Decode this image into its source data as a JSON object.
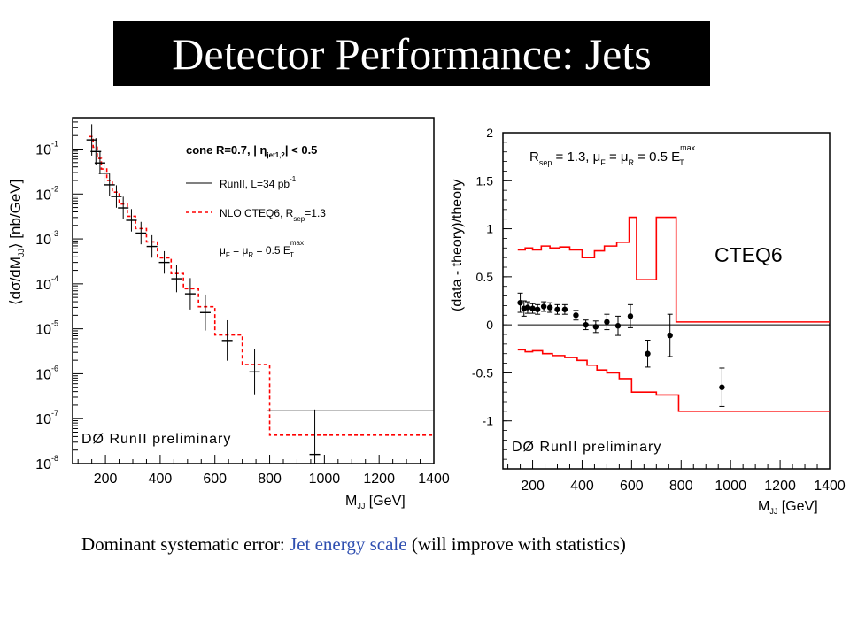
{
  "slide": {
    "title": "Detector Performance: Jets",
    "caption_pre": "Dominant systematic error: ",
    "caption_highlight": "Jet energy scale",
    "caption_post": " (will improve with statistics)",
    "highlight_color": "#2f4fb0"
  },
  "chart_data": [
    {
      "type": "line",
      "ylog": true,
      "xlim": [
        80,
        1400
      ],
      "ylim": [
        1e-08,
        0.5
      ],
      "xticks": [
        200,
        400,
        600,
        800,
        1000,
        1200,
        1400
      ],
      "xlabel_main": "M",
      "xlabel_sub": "JJ",
      "xlabel_unit": "[GeV]",
      "ylabel_pre": "⟨dσ/dM",
      "ylabel_sub": "JJ",
      "ylabel_post": "⟩ [nb/GeV]",
      "ytick_exponents": [
        "-1",
        "-2",
        "-3",
        "-4",
        "-5",
        "-6",
        "-7",
        "-8"
      ],
      "ytick_base": "10",
      "annotations": {
        "cone": "cone R=0.7, | η",
        "cone_sub": "jet1,2",
        "cone_post": "| < 0.5",
        "legend_data": "RunII, L=34 pb",
        "legend_data_sup": "-1",
        "legend_theory": "NLO CTEQ6, R",
        "legend_theory_sub": "sep",
        "legend_theory_post": "=1.3",
        "scale_pre": "μ",
        "scale_sub1": "F",
        "scale_mid": " = μ",
        "scale_sub2": "R",
        "scale_post": " = 0.5 E",
        "scale_sup": "max",
        "scale_sub3": "T",
        "watermark": "DØ RunII preliminary"
      },
      "series": [
        {
          "name": "RunII, L=34 pb-1",
          "style": "data",
          "points": [
            {
              "x": 150,
              "y": 0.16,
              "dy": 0.35
            },
            {
              "x": 165,
              "y": 0.088,
              "dy": 0.3
            },
            {
              "x": 180,
              "y": 0.049,
              "dy": 0.25
            },
            {
              "x": 195,
              "y": 0.029,
              "dy": 0.25
            },
            {
              "x": 215,
              "y": 0.016,
              "dy": 0.25
            },
            {
              "x": 240,
              "y": 0.0088,
              "dy": 0.25
            },
            {
              "x": 265,
              "y": 0.0049,
              "dy": 0.25
            },
            {
              "x": 295,
              "y": 0.0026,
              "dy": 0.25
            },
            {
              "x": 330,
              "y": 0.00135,
              "dy": 0.25
            },
            {
              "x": 370,
              "y": 0.00068,
              "dy": 0.25
            },
            {
              "x": 415,
              "y": 0.0003,
              "dy": 0.25
            },
            {
              "x": 460,
              "y": 0.00013,
              "dy": 0.3
            },
            {
              "x": 510,
              "y": 6e-05,
              "dy": 0.35
            },
            {
              "x": 565,
              "y": 2.3e-05,
              "dy": 0.4
            },
            {
              "x": 645,
              "y": 5.5e-06,
              "dy": 0.45
            },
            {
              "x": 745,
              "y": 1.1e-06,
              "dy": 0.5
            },
            {
              "x": 965,
              "y": 1.6e-08,
              "dy": 1.0
            }
          ],
          "bins": [
            [
              790,
              1400,
              1.5e-07
            ]
          ]
        },
        {
          "name": "NLO CTEQ6, R sep=1.3",
          "style": "dashed-step",
          "color": "#ff0000",
          "bins": [
            [
              140,
              155,
              0.19
            ],
            [
              155,
              170,
              0.11
            ],
            [
              170,
              185,
              0.062
            ],
            [
              185,
              205,
              0.036
            ],
            [
              205,
              225,
              0.02
            ],
            [
              225,
              250,
              0.011
            ],
            [
              250,
              280,
              0.006
            ],
            [
              280,
              310,
              0.0032
            ],
            [
              310,
              350,
              0.0017
            ],
            [
              350,
              390,
              0.00086
            ],
            [
              390,
              440,
              0.00038
            ],
            [
              440,
              485,
              0.00017
            ],
            [
              485,
              540,
              7.8e-05
            ],
            [
              540,
              600,
              3.1e-05
            ],
            [
              600,
              700,
              7.3e-06
            ],
            [
              700,
              800,
              1.6e-06
            ],
            [
              800,
              1400,
              4.3e-08
            ]
          ]
        }
      ]
    },
    {
      "type": "line",
      "xlim": [
        80,
        1400
      ],
      "ylim": [
        -1.5,
        2
      ],
      "xticks": [
        200,
        400,
        600,
        800,
        1000,
        1200,
        1400
      ],
      "yticks": [
        -1,
        -0.5,
        0,
        0.5,
        1,
        1.5,
        2
      ],
      "ytick_labels": [
        "-1",
        "-0.5",
        "0",
        "0.5",
        "1",
        "1.5",
        "2"
      ],
      "xlabel_main": "M",
      "xlabel_sub": "JJ",
      "xlabel_unit": "[GeV]",
      "ylabel": "(data - theory)/theory",
      "annotations": {
        "rsep_pre": "R",
        "rsep_sub": "sep",
        "rsep_mid": " = 1.3, μ",
        "rsep_sub2": "F",
        "rsep_mid2": " = μ",
        "rsep_sub3": "R",
        "rsep_post": " = 0.5 E",
        "rsep_sup": "max",
        "rsep_sub4": "T",
        "cteq": "CTEQ6",
        "watermark": "DØ RunII preliminary"
      },
      "series": [
        {
          "name": "data",
          "style": "points",
          "points": [
            {
              "x": 150,
              "y": 0.23,
              "dy": 0.1
            },
            {
              "x": 165,
              "y": 0.17,
              "dy": 0.08
            },
            {
              "x": 180,
              "y": 0.18,
              "dy": 0.06
            },
            {
              "x": 200,
              "y": 0.17,
              "dy": 0.05
            },
            {
              "x": 220,
              "y": 0.16,
              "dy": 0.05
            },
            {
              "x": 245,
              "y": 0.19,
              "dy": 0.05
            },
            {
              "x": 270,
              "y": 0.18,
              "dy": 0.05
            },
            {
              "x": 300,
              "y": 0.16,
              "dy": 0.05
            },
            {
              "x": 330,
              "y": 0.16,
              "dy": 0.05
            },
            {
              "x": 375,
              "y": 0.1,
              "dy": 0.05
            },
            {
              "x": 415,
              "y": 0.0,
              "dy": 0.05
            },
            {
              "x": 455,
              "y": -0.02,
              "dy": 0.06
            },
            {
              "x": 500,
              "y": 0.03,
              "dy": 0.08
            },
            {
              "x": 545,
              "y": -0.01,
              "dy": 0.1
            },
            {
              "x": 595,
              "y": 0.09,
              "dy": 0.12
            },
            {
              "x": 665,
              "y": -0.3,
              "dy": 0.14
            },
            {
              "x": 755,
              "y": -0.11,
              "dy": 0.22
            },
            {
              "x": 965,
              "y": -0.65,
              "dy": 0.2
            }
          ]
        },
        {
          "name": "upper band",
          "style": "step",
          "color": "#ff0000",
          "bins": [
            [
              140,
              170,
              0.78
            ],
            [
              170,
              200,
              0.8
            ],
            [
              200,
              235,
              0.78
            ],
            [
              235,
              270,
              0.82
            ],
            [
              270,
              310,
              0.8
            ],
            [
              310,
              350,
              0.81
            ],
            [
              350,
              400,
              0.78
            ],
            [
              400,
              450,
              0.7
            ],
            [
              450,
              490,
              0.77
            ],
            [
              490,
              540,
              0.82
            ],
            [
              540,
              590,
              0.86
            ],
            [
              590,
              620,
              1.12
            ],
            [
              620,
              700,
              0.47
            ],
            [
              700,
              780,
              1.12
            ],
            [
              780,
              1400,
              0.03
            ]
          ]
        },
        {
          "name": "lower band",
          "style": "step",
          "color": "#ff0000",
          "bins": [
            [
              140,
              170,
              -0.26
            ],
            [
              170,
              200,
              -0.28
            ],
            [
              200,
              240,
              -0.27
            ],
            [
              240,
              280,
              -0.3
            ],
            [
              280,
              330,
              -0.32
            ],
            [
              330,
              380,
              -0.34
            ],
            [
              380,
              420,
              -0.37
            ],
            [
              420,
              460,
              -0.42
            ],
            [
              460,
              500,
              -0.47
            ],
            [
              500,
              550,
              -0.5
            ],
            [
              550,
              600,
              -0.56
            ],
            [
              600,
              700,
              -0.7
            ],
            [
              700,
              790,
              -0.73
            ],
            [
              790,
              1400,
              -0.9
            ]
          ]
        }
      ]
    }
  ]
}
